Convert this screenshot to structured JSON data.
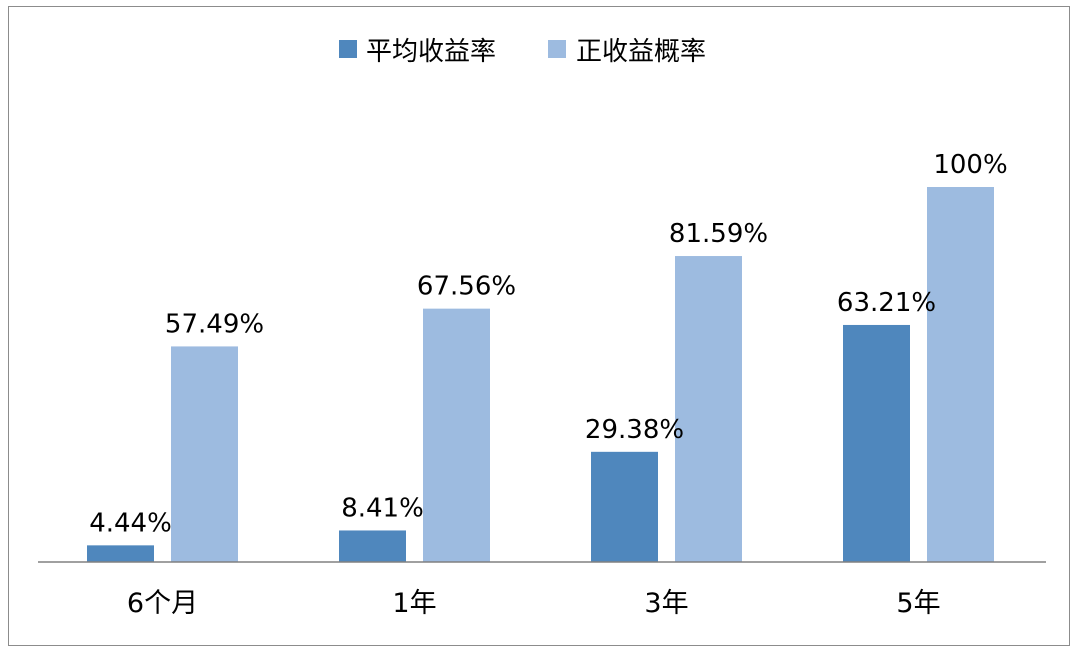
{
  "chart_data": {
    "type": "bar",
    "categories": [
      "6个月",
      "1年",
      "3年",
      "5年"
    ],
    "series": [
      {
        "name": "平均收益率",
        "values": [
          4.44,
          8.41,
          29.38,
          63.21
        ],
        "labels": [
          "4.44%",
          "8.41%",
          "29.38%",
          "63.21%"
        ],
        "color": "#4f87bd"
      },
      {
        "name": "正收益概率",
        "values": [
          57.49,
          67.56,
          81.59,
          100
        ],
        "labels": [
          "57.49%",
          "67.56%",
          "81.59%",
          "100%"
        ],
        "color": "#9dbbe0"
      }
    ],
    "ylim": [
      0,
      100
    ],
    "unit": "%",
    "legend_position": "top",
    "grid": false,
    "axis_color": "#808080"
  }
}
